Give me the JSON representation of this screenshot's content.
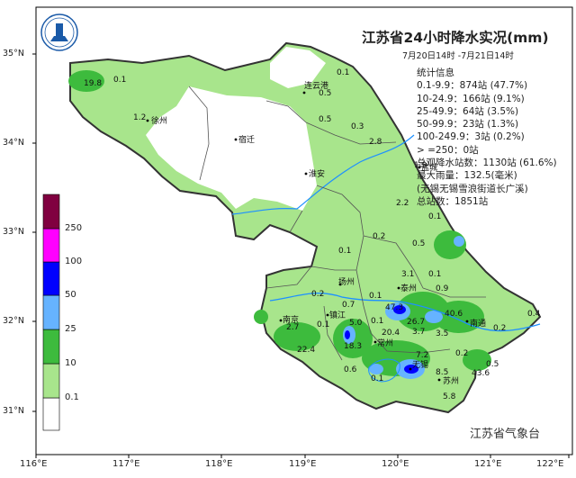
{
  "title": "江苏省24小时降水实况(mm)",
  "subtitle": "7月20日14时 -7月21日14时",
  "stats": [
    "统计信息",
    "0.1-9.9：874站 (47.7%)",
    "10-24.9：166站 (9.1%)",
    "25-49.9：64站 (3.5%)",
    "50-99.9：23站 (1.3%)",
    "100-249.9：3站 (0.2%)",
    "> =250：0站",
    "总观降水站数：1130站 (61.6%)",
    "最大雨量：132.5(毫米)",
    "(无锡无锡雪浪街道长广溪)",
    "总站数：1851站"
  ],
  "agency": "江苏省气象台",
  "y_axis": [
    "35°N",
    "34°N",
    "33°N",
    "32°N",
    "31°N"
  ],
  "x_axis": [
    "116°E",
    "117°E",
    "118°E",
    "119°E",
    "120°E",
    "121°E",
    "122°E"
  ],
  "legend": {
    "colors": [
      "#ffffff",
      "#a8e58c",
      "#3dbb3d",
      "#66b3ff",
      "#0000ff",
      "#ff00ff",
      "#800040"
    ],
    "labels": [
      "0.1",
      "10",
      "25",
      "50",
      "100",
      "250"
    ]
  },
  "cities": [
    "连云港",
    "徐州",
    "宿迁",
    "淮安",
    "盐城",
    "扬州",
    "泰州",
    "南京",
    "镇江",
    "常州",
    "无锡",
    "苏州",
    "南通"
  ],
  "values": [
    "19.8",
    "0.1",
    "1.2",
    "0.1",
    "0.5",
    "0.5",
    "0.3",
    "2.8",
    "1.9",
    "2.2",
    "0.1",
    "0.2",
    "0.5",
    "0.1",
    "3.1",
    "0.1",
    "0.9",
    "0.2",
    "0.7",
    "0.1",
    "47.3",
    "26.7",
    "40.6",
    "0.4",
    "2.7",
    "0.1",
    "5.0",
    "0.1",
    "20.4",
    "3.7",
    "3.5",
    "0.2",
    "22.4",
    "18.3",
    "0.6",
    "0.1",
    "7.2",
    "0.2",
    "0.5",
    "8.5",
    "43.6",
    "5.8"
  ]
}
